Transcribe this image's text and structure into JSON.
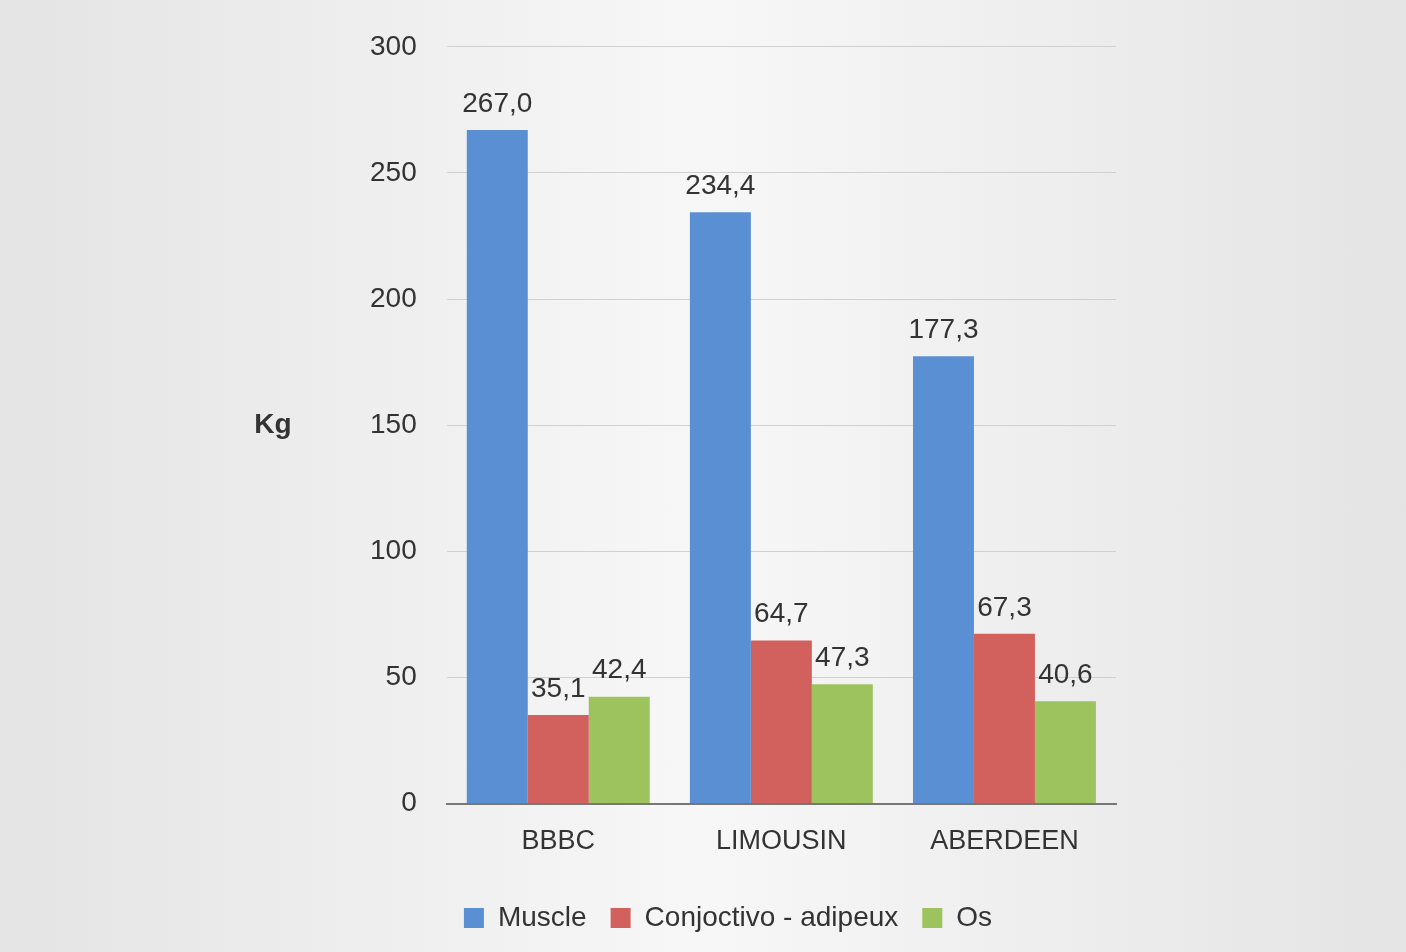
{
  "chart_data": {
    "type": "bar",
    "ylabel": "Kg",
    "categories": [
      "BBBC",
      "LIMOUSIN",
      "ABERDEEN"
    ],
    "series": [
      {
        "name": "Muscle",
        "color": "#5b8fd4",
        "values": [
          267.0,
          234.4,
          177.3
        ],
        "value_labels": [
          "267,0",
          "234,4",
          "177,3"
        ]
      },
      {
        "name": "Conjoctivo - adipeux",
        "color": "#d2605c",
        "values": [
          35.1,
          64.7,
          67.3
        ],
        "value_labels": [
          "35,1",
          "64,7",
          "67,3"
        ]
      },
      {
        "name": "Os",
        "color": "#9dc35e",
        "values": [
          42.4,
          47.3,
          40.6
        ],
        "value_labels": [
          "42,4",
          "47,3",
          "40,6"
        ]
      }
    ],
    "ylim": [
      0,
      300
    ],
    "yticks": [
      0,
      50,
      100,
      150,
      200,
      250,
      300
    ],
    "grid": "y",
    "legend": "bottom"
  }
}
